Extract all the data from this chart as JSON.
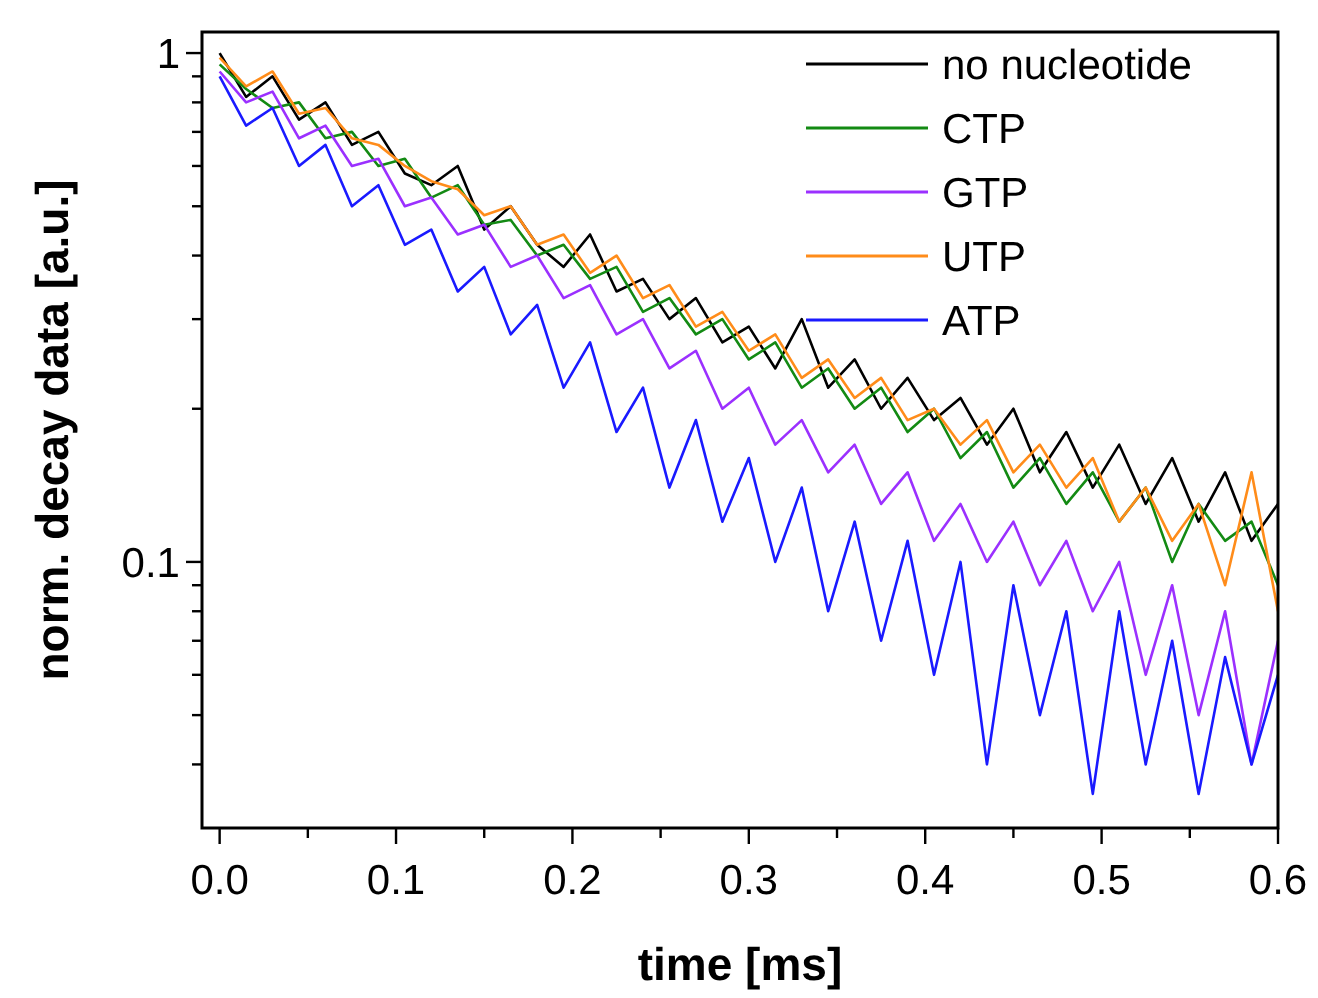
{
  "chart_data": {
    "type": "line",
    "xlabel": "time [ms]",
    "ylabel": "norm. decay data [a.u.]",
    "log": "y",
    "legend": "top right",
    "marker": "none",
    "line_style": "solid",
    "grid": false,
    "xlim": [
      -0.01,
      0.6
    ],
    "ylim": [
      0.03,
      1.1
    ],
    "xticks": [
      {
        "value": 0,
        "label": "0.0"
      },
      {
        "value": 0.05,
        "label": null
      },
      0.1,
      {
        "value": 0.15,
        "label": null
      },
      0.2,
      {
        "value": 0.25,
        "label": null
      },
      0.3,
      {
        "value": 0.35,
        "label": null
      },
      0.4,
      {
        "value": 0.45,
        "label": null
      },
      0.5,
      {
        "value": 0.55,
        "label": null
      },
      0.6
    ],
    "yticks": [
      {
        "value": 0.04,
        "label": null
      },
      {
        "value": 0.05,
        "label": null
      },
      {
        "value": 0.06,
        "label": null
      },
      {
        "value": 0.07,
        "label": null
      },
      {
        "value": 0.08,
        "label": null
      },
      {
        "value": 0.09,
        "label": null
      },
      0.1,
      {
        "value": 0.2,
        "label": null
      },
      {
        "value": 0.3,
        "label": null
      },
      {
        "value": 0.4,
        "label": null
      },
      {
        "value": 0.5,
        "label": null
      },
      {
        "value": 0.6,
        "label": null
      },
      {
        "value": 0.7,
        "label": null
      },
      {
        "value": 0.8,
        "label": null
      },
      {
        "value": 0.9,
        "label": null
      },
      1
    ],
    "x": [
      0,
      0.015,
      0.03,
      0.045,
      0.06,
      0.075,
      0.09,
      0.105,
      0.12,
      0.135,
      0.15,
      0.165,
      0.18,
      0.195,
      0.21,
      0.225,
      0.24,
      0.255,
      0.27,
      0.285,
      0.3,
      0.315,
      0.33,
      0.345,
      0.36,
      0.375,
      0.39,
      0.405,
      0.42,
      0.435,
      0.45,
      0.465,
      0.48,
      0.495,
      0.51,
      0.525,
      0.54,
      0.555,
      0.57,
      0.585,
      0.6
    ],
    "series": [
      {
        "name": "no nucleotide",
        "color": "#000000",
        "values": [
          1,
          0.82,
          0.9,
          0.74,
          0.8,
          0.66,
          0.7,
          0.58,
          0.55,
          0.6,
          0.45,
          0.5,
          0.42,
          0.38,
          0.44,
          0.34,
          0.36,
          0.3,
          0.33,
          0.27,
          0.29,
          0.24,
          0.3,
          0.22,
          0.25,
          0.2,
          0.23,
          0.19,
          0.21,
          0.17,
          0.2,
          0.15,
          0.18,
          0.14,
          0.17,
          0.13,
          0.16,
          0.12,
          0.15,
          0.11,
          0.13
        ]
      },
      {
        "name": "CTP",
        "color": "#138a13",
        "values": [
          0.95,
          0.85,
          0.78,
          0.8,
          0.68,
          0.7,
          0.6,
          0.62,
          0.52,
          0.55,
          0.46,
          0.47,
          0.4,
          0.42,
          0.36,
          0.38,
          0.31,
          0.33,
          0.28,
          0.3,
          0.25,
          0.27,
          0.22,
          0.24,
          0.2,
          0.22,
          0.18,
          0.2,
          0.16,
          0.18,
          0.14,
          0.16,
          0.13,
          0.15,
          0.12,
          0.14,
          0.1,
          0.13,
          0.11,
          0.12,
          0.09
        ]
      },
      {
        "name": "GTP",
        "color": "#9b30ff",
        "values": [
          0.92,
          0.8,
          0.84,
          0.68,
          0.72,
          0.6,
          0.62,
          0.5,
          0.52,
          0.44,
          0.46,
          0.38,
          0.4,
          0.33,
          0.35,
          0.28,
          0.3,
          0.24,
          0.26,
          0.2,
          0.22,
          0.17,
          0.19,
          0.15,
          0.17,
          0.13,
          0.15,
          0.11,
          0.13,
          0.1,
          0.12,
          0.09,
          0.11,
          0.08,
          0.1,
          0.06,
          0.09,
          0.05,
          0.08,
          0.04,
          0.07
        ]
      },
      {
        "name": "UTP",
        "color": "#ff8c1a",
        "values": [
          0.98,
          0.86,
          0.92,
          0.76,
          0.78,
          0.68,
          0.66,
          0.6,
          0.56,
          0.54,
          0.48,
          0.5,
          0.42,
          0.44,
          0.37,
          0.4,
          0.33,
          0.35,
          0.29,
          0.31,
          0.26,
          0.28,
          0.23,
          0.25,
          0.21,
          0.23,
          0.19,
          0.2,
          0.17,
          0.19,
          0.15,
          0.17,
          0.14,
          0.16,
          0.12,
          0.14,
          0.11,
          0.13,
          0.09,
          0.15,
          0.08
        ]
      },
      {
        "name": "ATP",
        "color": "#1a1aff",
        "values": [
          0.9,
          0.72,
          0.78,
          0.6,
          0.66,
          0.5,
          0.55,
          0.42,
          0.45,
          0.34,
          0.38,
          0.28,
          0.32,
          0.22,
          0.27,
          0.18,
          0.22,
          0.14,
          0.19,
          0.12,
          0.16,
          0.1,
          0.14,
          0.08,
          0.12,
          0.07,
          0.11,
          0.06,
          0.1,
          0.04,
          0.09,
          0.05,
          0.08,
          0.035,
          0.08,
          0.04,
          0.07,
          0.035,
          0.065,
          0.04,
          0.06
        ]
      }
    ]
  }
}
